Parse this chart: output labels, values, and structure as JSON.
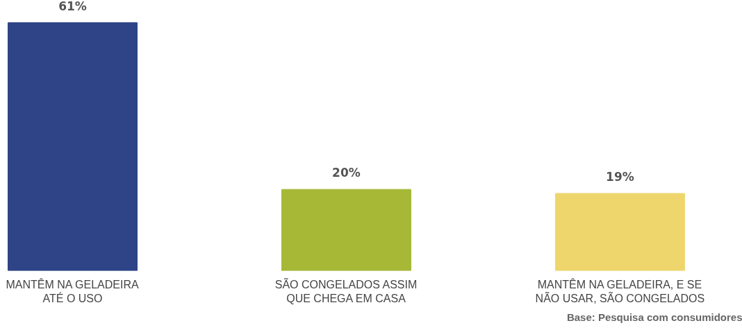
{
  "chart_data": {
    "type": "bar",
    "categories": [
      "MANTÊM NA GELADEIRA\nATÉ O USO",
      "SÃO CONGELADOS ASSIM\nQUE CHEGA EM CASA",
      "MANTÊM NA GELADEIRA, E SE\nNÃO USAR, SÃO CONGELADOS"
    ],
    "values": [
      61,
      20,
      19
    ],
    "colors": [
      "#2e4486",
      "#a6b836",
      "#eed66c"
    ],
    "value_labels": [
      "61%",
      "20%",
      "19%"
    ],
    "annotations": [
      "Base: Pesquisa com consumidores"
    ],
    "grid": false,
    "tick_labels": "x"
  }
}
